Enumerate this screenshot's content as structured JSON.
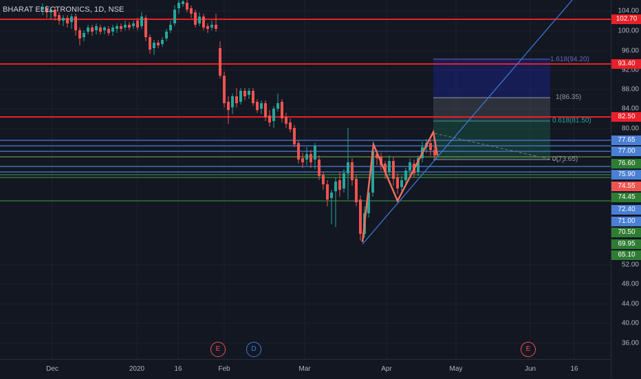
{
  "header": {
    "symbol_legend": "BHARAT ELECTRONICS, 1D, NSE"
  },
  "price_ticks": [
    "104.00",
    "100.00",
    "96.00",
    "92.00",
    "88.00",
    "84.00",
    "80.00",
    "52.00",
    "48.00",
    "44.00",
    "40.00",
    "36.00"
  ],
  "price_badges": [
    {
      "label": "102.70",
      "color": "#e8202a"
    },
    {
      "label": "93.40",
      "color": "#e8202a"
    },
    {
      "label": "82.50",
      "color": "#e8202a"
    },
    {
      "label": "77.65",
      "color": "#4a7fd4"
    },
    {
      "label": "77.00",
      "color": "#4a7fd4"
    },
    {
      "label": "76.60",
      "color": "#2e7d32"
    },
    {
      "label": "75.90",
      "color": "#4a7fd4"
    },
    {
      "label": "74.55",
      "color": "#ef5350"
    },
    {
      "label": "74.45",
      "color": "#2e7d32"
    },
    {
      "label": "72.40",
      "color": "#4a7fd4"
    },
    {
      "label": "71.00",
      "color": "#4a7fd4"
    },
    {
      "label": "70.50",
      "color": "#2e7d32"
    },
    {
      "label": "69.95",
      "color": "#2e7d32"
    },
    {
      "label": "65.10",
      "color": "#2e7d32"
    }
  ],
  "time_labels": [
    "Dec",
    "2020",
    "16",
    "Feb",
    "Mar",
    "Apr",
    "May",
    "Jun",
    "16"
  ],
  "fib_labels": {
    "l1618": "1.618(94.20)",
    "l1": "1(86.35)",
    "l0618": "0.618(81.50)",
    "l0": "0(73.65)"
  },
  "event_markers": [
    "E",
    "D",
    "E"
  ],
  "colors": {
    "background": "#131722",
    "candle_up": "#26a69a",
    "candle_down": "#ef5350",
    "resistance": "#e8202a",
    "support_blue": "#4a7fd4",
    "support_green": "#43a047",
    "trendline": "#3d7fe0",
    "zigzag": "#ef6f5c"
  }
}
